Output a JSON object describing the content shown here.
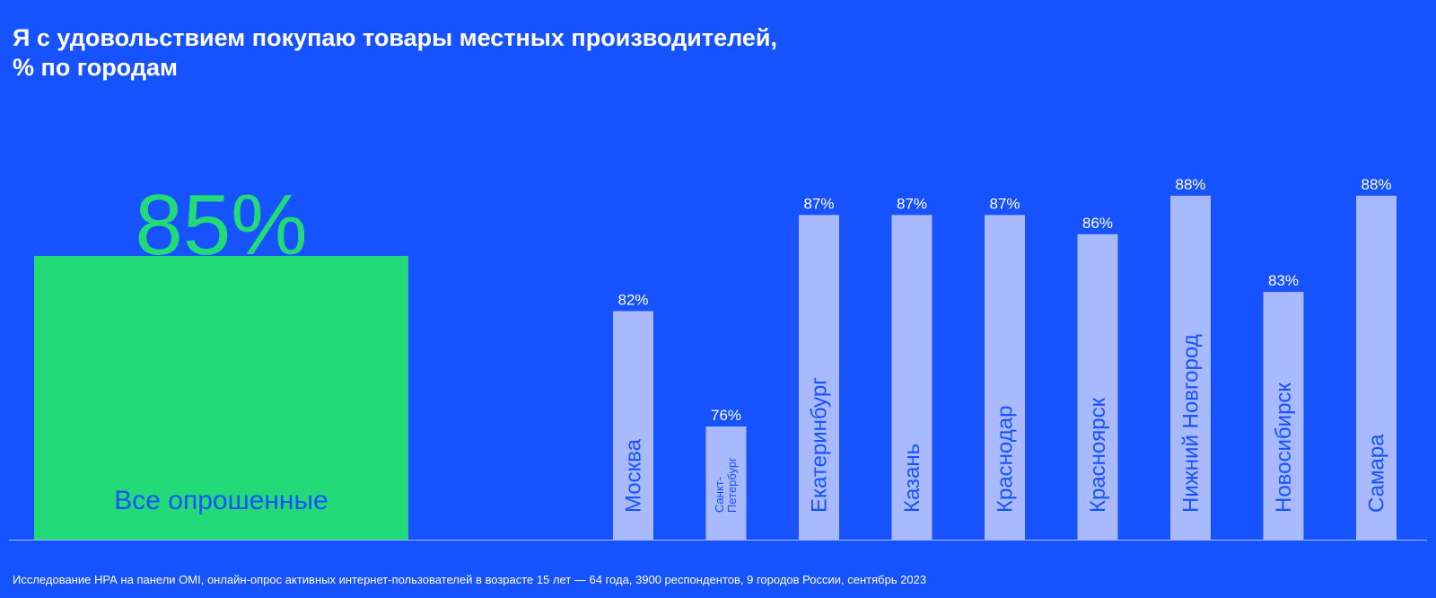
{
  "title": {
    "line1": "Я с удовольствием покупаю товары местных производителей,",
    "line2": "% по городам"
  },
  "total": {
    "value_label": "85%",
    "category_label": "Все опрошенные",
    "value": 85
  },
  "chart_data": {
    "type": "bar",
    "title": "Я с удовольствием покупаю товары местных производителей, % по городам",
    "categories": [
      "Москва",
      "Санкт-Петербург",
      "Екатеринбург",
      "Казань",
      "Краснодар",
      "Красноярск",
      "Нижний Новгород",
      "Новосибирск",
      "Самара"
    ],
    "values": [
      82,
      76,
      87,
      87,
      87,
      86,
      88,
      83,
      88
    ],
    "value_labels": [
      "82%",
      "76%",
      "87%",
      "87%",
      "87%",
      "86%",
      "88%",
      "83%",
      "88%"
    ],
    "category_label_lines": [
      [
        "Москва"
      ],
      [
        "Санкт-",
        "Петербург"
      ],
      [
        "Екатеринбург"
      ],
      [
        "Казань"
      ],
      [
        "Краснодар"
      ],
      [
        "Красноярск"
      ],
      [
        "Нижний Новгород"
      ],
      [
        "Новосибирск"
      ],
      [
        "Самара"
      ]
    ],
    "bar_color": "#A8B9FE",
    "label_color": "#1652FE",
    "xlabel": "",
    "ylabel": "",
    "grid": false
  },
  "colors": {
    "background": "#1652FE",
    "highlight": "#22DA78",
    "bar": "#A8B9FE",
    "baseline": "#A8B9FE"
  },
  "footnote": "Исследование НРА на панели OMI, онлайн-опрос активных интернет-пользователей в возрасте 15 лет — 64 года, 3900 респондентов, 9 городов России, сентябрь 2023"
}
